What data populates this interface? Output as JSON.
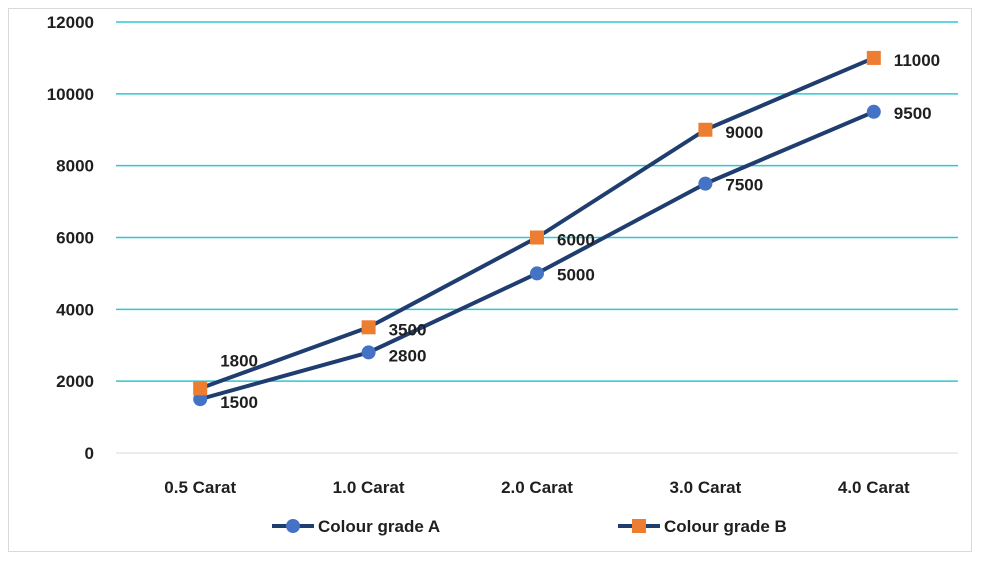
{
  "chart_data": {
    "type": "line",
    "categories": [
      "0.5 Carat",
      "1.0 Carat",
      "2.0 Carat",
      "3.0 Carat",
      "4.0 Carat"
    ],
    "series": [
      {
        "name": "Colour grade A",
        "values": [
          1500,
          2800,
          5000,
          7500,
          9500
        ],
        "marker": "circle",
        "marker_color": "#4472c4",
        "line_color": "#1f3d6e"
      },
      {
        "name": "Colour grade B",
        "values": [
          1800,
          3500,
          6000,
          9000,
          11000
        ],
        "marker": "square",
        "marker_color": "#ed7d31",
        "line_color": "#1f3d6e"
      }
    ],
    "ylim": [
      0,
      12000
    ],
    "yticks": [
      "0",
      "2000",
      "4000",
      "6000",
      "8000",
      "10000",
      "12000"
    ],
    "grid": true,
    "grid_color": "#2ec8d0",
    "legend": "bottom",
    "title": "",
    "xlabel": "",
    "ylabel": ""
  }
}
